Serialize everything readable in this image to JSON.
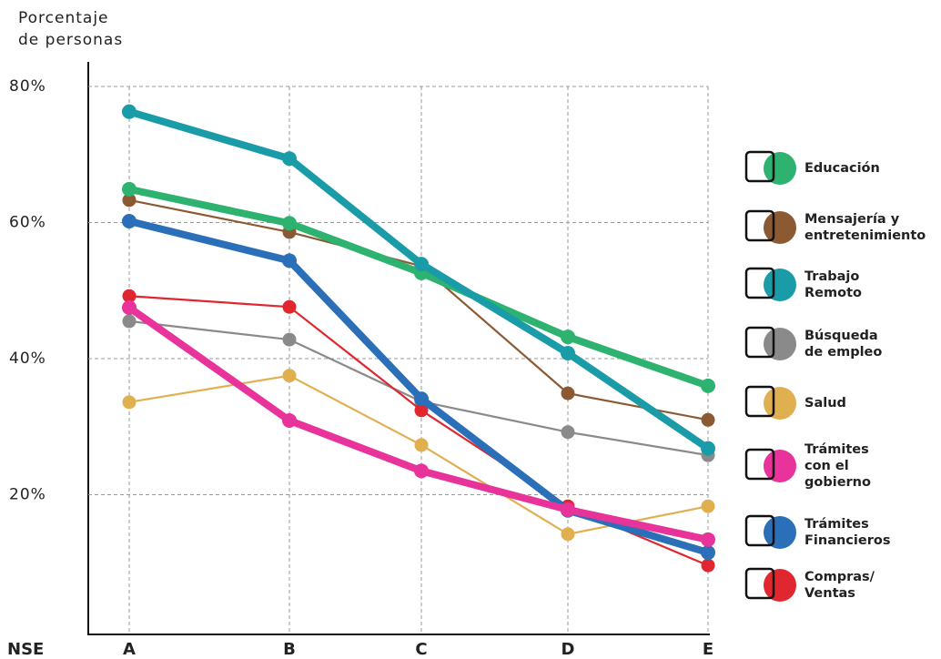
{
  "chart_data": {
    "type": "line",
    "y_label": "Porcentaje\nde personas",
    "x_label": "NSE",
    "categories": [
      "A",
      "B",
      "C",
      "D",
      "E"
    ],
    "ylim": [
      0,
      80
    ],
    "yticks": [
      {
        "value": 20,
        "label": "20%"
      },
      {
        "value": 40,
        "label": "40%"
      },
      {
        "value": 60,
        "label": "60%"
      },
      {
        "value": 80,
        "label": "80%"
      }
    ],
    "grid": true,
    "legend": "right",
    "series": [
      {
        "name": "Educación",
        "color": "#2db36f",
        "values": [
          64.9,
          59.9,
          52.6,
          43.2,
          36.0
        ]
      },
      {
        "name": "Mensajería y\nentretenimiento",
        "color": "#8b5a33",
        "values": [
          63.3,
          58.6,
          53.6,
          34.9,
          31.0
        ]
      },
      {
        "name": "Trabajo\nRemoto",
        "color": "#1a9ba8",
        "values": [
          76.3,
          69.4,
          53.9,
          40.8,
          26.8
        ]
      },
      {
        "name": "Búsqueda\nde empleo",
        "color": "#8a8a8a",
        "values": [
          45.5,
          42.8,
          33.7,
          29.2,
          25.8
        ]
      },
      {
        "name": "Salud",
        "color": "#e0b050",
        "values": [
          33.6,
          37.5,
          27.3,
          14.2,
          18.3
        ]
      },
      {
        "name": "Trámites\ncon el\ngobierno",
        "color": "#e8339a",
        "values": [
          47.5,
          30.9,
          23.5,
          17.8,
          13.4
        ]
      },
      {
        "name": "Trámites\nFinancieros",
        "color": "#2a6fb8",
        "values": [
          60.2,
          54.4,
          34.1,
          17.7,
          11.5
        ]
      },
      {
        "name": "Compras/\nVentas",
        "color": "#e0262e",
        "values": [
          49.2,
          47.6,
          32.4,
          18.3,
          9.6
        ]
      }
    ]
  }
}
